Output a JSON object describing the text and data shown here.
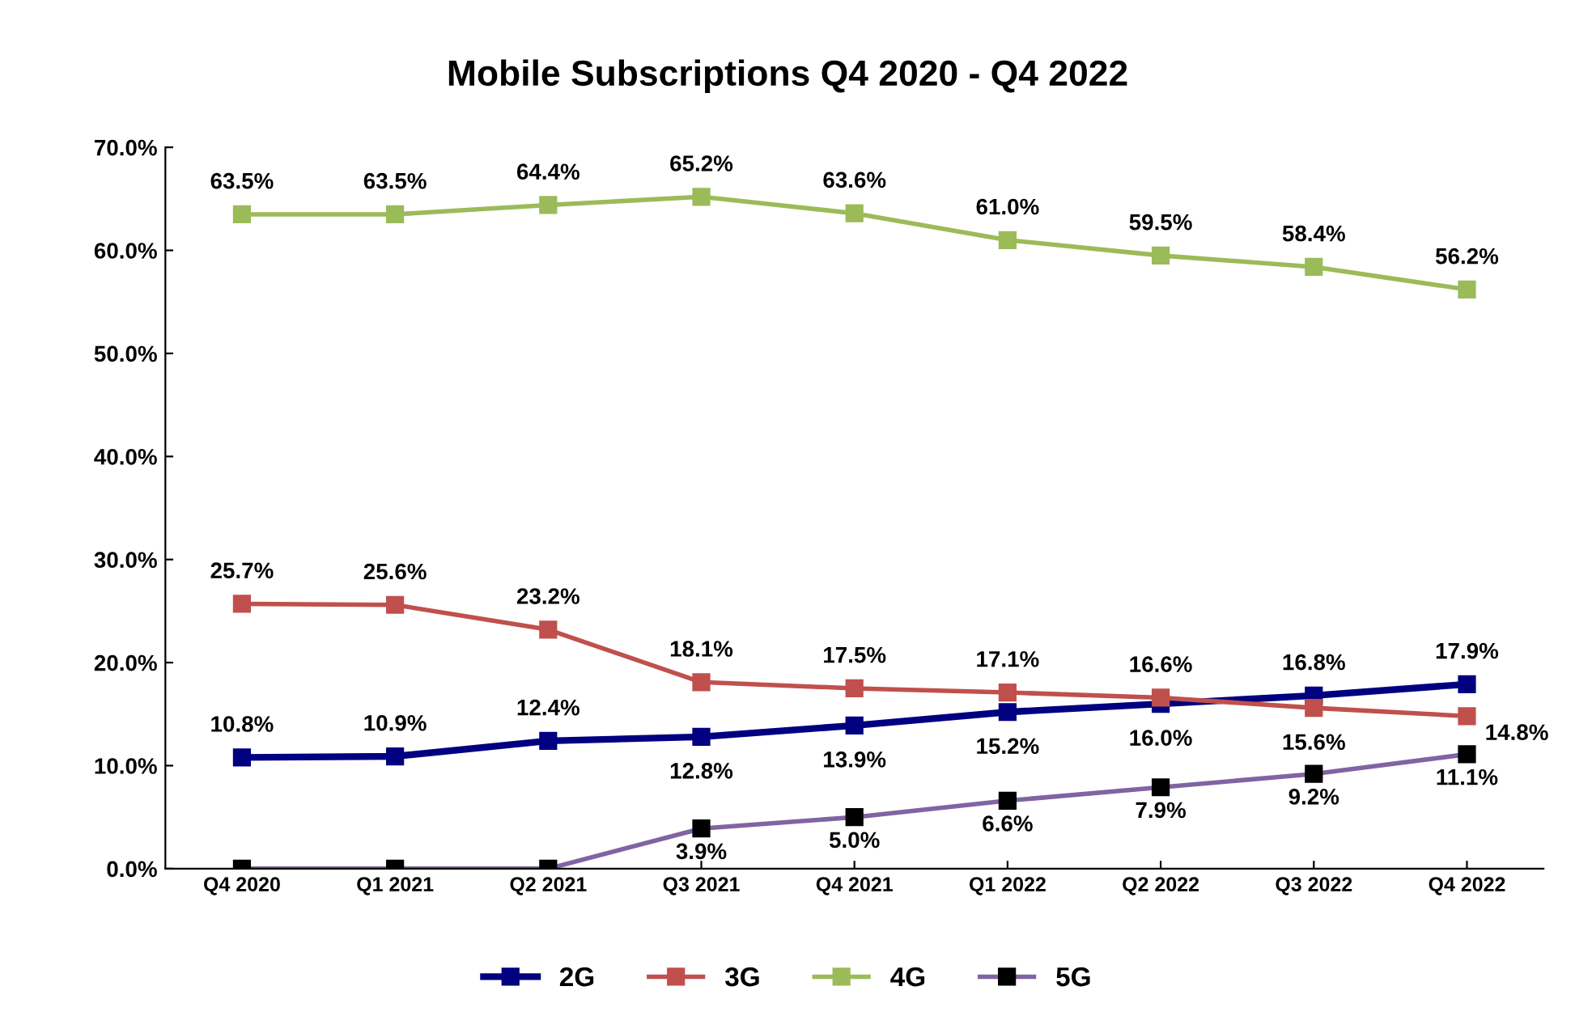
{
  "chart_data": {
    "type": "line",
    "title": "Mobile Subscriptions Q4 2020 - Q4 2022",
    "categories": [
      "Q4 2020",
      "Q1 2021",
      "Q2 2021",
      "Q3 2021",
      "Q4 2021",
      "Q1 2022",
      "Q2 2022",
      "Q3 2022",
      "Q4 2022"
    ],
    "series": [
      {
        "name": "2G",
        "color": "#000080",
        "values": [
          10.8,
          10.9,
          12.4,
          12.8,
          13.9,
          15.2,
          16.0,
          16.8,
          17.9
        ],
        "value_labels": [
          "10.8%",
          "10.9%",
          "12.4%",
          "12.8%",
          "13.9%",
          "15.2%",
          "16.0%",
          "16.8%",
          "17.9%"
        ]
      },
      {
        "name": "3G",
        "color": "#c0504d",
        "values": [
          25.7,
          25.6,
          23.2,
          18.1,
          17.5,
          17.1,
          16.6,
          15.6,
          14.8
        ],
        "value_labels": [
          "25.7%",
          "25.6%",
          "23.2%",
          "18.1%",
          "17.5%",
          "17.1%",
          "16.6%",
          "15.6%",
          "14.8%"
        ]
      },
      {
        "name": "4G",
        "color": "#9bbb59",
        "values": [
          63.5,
          63.5,
          64.4,
          65.2,
          63.6,
          61.0,
          59.5,
          58.4,
          56.2
        ],
        "value_labels": [
          "63.5%",
          "63.5%",
          "64.4%",
          "65.2%",
          "63.6%",
          "61.0%",
          "59.5%",
          "58.4%",
          "56.2%"
        ]
      },
      {
        "name": "5G",
        "color": "#8064a2",
        "values": [
          0,
          0,
          0,
          3.9,
          5.0,
          6.6,
          7.9,
          9.2,
          11.1
        ],
        "value_labels": [
          null,
          null,
          null,
          "3.9%",
          "5.0%",
          "6.6%",
          "7.9%",
          "9.2%",
          "11.1%"
        ]
      }
    ],
    "ylim": [
      0,
      70
    ],
    "yticks": [
      {
        "value": 0,
        "label": "0.0%"
      },
      {
        "value": 10,
        "label": "10.0%"
      },
      {
        "value": 20,
        "label": "20.0%"
      },
      {
        "value": 30,
        "label": "30.0%"
      },
      {
        "value": 40,
        "label": "40.0%"
      },
      {
        "value": 50,
        "label": "50.0%"
      },
      {
        "value": 60,
        "label": "60.0%"
      },
      {
        "value": 70,
        "label": "70.0%"
      }
    ],
    "grid": false,
    "legend": "bottom",
    "marker": "square",
    "line_style": "solid"
  }
}
